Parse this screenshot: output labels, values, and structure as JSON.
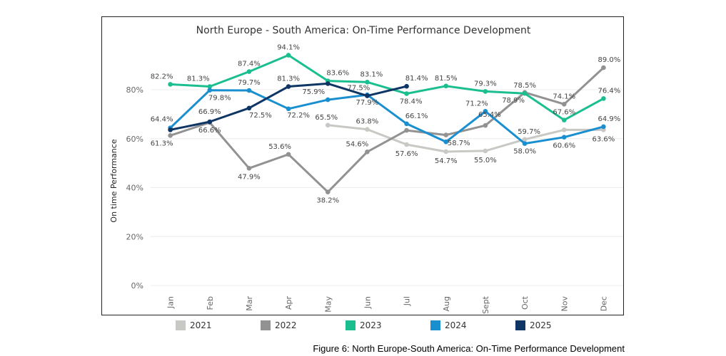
{
  "chart_data": {
    "type": "line",
    "title": "North Europe - South America: On-Time Performance Development",
    "ylabel": "On time Performance",
    "xlabel": "",
    "ylim": [
      0,
      100
    ],
    "yticks": [
      0,
      20,
      40,
      60,
      80
    ],
    "ytick_labels": [
      "0%",
      "20%",
      "40%",
      "60%",
      "80%"
    ],
    "categories": [
      "Jan",
      "Feb",
      "Mar",
      "Apr",
      "May",
      "Jun",
      "Jul",
      "Aug",
      "Sept",
      "Oct",
      "Nov",
      "Dec"
    ],
    "legend_position": "bottom",
    "series": [
      {
        "name": "2021",
        "color": "#c8c8c4",
        "values": [
          null,
          null,
          null,
          null,
          65.5,
          63.8,
          57.6,
          54.7,
          55.0,
          59.7,
          63.6,
          63.6
        ],
        "labels": [
          null,
          null,
          null,
          null,
          "65.5%",
          "63.8%",
          "57.6%",
          "54.7%",
          "55.0%",
          "59.7%",
          null,
          "63.6%"
        ]
      },
      {
        "name": "2022",
        "color": "#929292",
        "values": [
          61.3,
          66.6,
          47.9,
          53.6,
          38.2,
          54.6,
          63.4,
          61.5,
          65.4,
          78.9,
          74.1,
          89.0
        ],
        "labels": [
          "61.3%",
          "66.6%",
          "47.9%",
          "53.6%",
          "38.2%",
          "54.6%",
          null,
          null,
          "65.4%",
          "78.9%",
          "74.1%",
          "89.0%"
        ]
      },
      {
        "name": "2023",
        "color": "#1bbf8f",
        "values": [
          82.2,
          81.3,
          87.4,
          94.1,
          83.6,
          83.1,
          78.4,
          81.5,
          79.3,
          78.5,
          67.6,
          76.4
        ],
        "labels": [
          "82.2%",
          "81.3%",
          "87.4%",
          "94.1%",
          "83.6%",
          "83.1%",
          "78.4%",
          "81.5%",
          "79.3%",
          "78.5%",
          "67.6%",
          "76.4%"
        ]
      },
      {
        "name": "2024",
        "color": "#1a8fd0",
        "values": [
          64.4,
          79.8,
          79.7,
          72.2,
          75.9,
          77.9,
          66.1,
          58.7,
          71.2,
          58.0,
          60.6,
          64.9
        ],
        "labels": [
          "64.4%",
          "79.8%",
          "79.7%",
          "72.2%",
          "75.9%",
          "77.9%",
          "66.1%",
          "58.7%",
          "71.2%",
          "58.0%",
          "60.6%",
          "64.9%"
        ]
      },
      {
        "name": "2025",
        "color": "#0f3564",
        "values": [
          63.6,
          66.9,
          72.5,
          81.3,
          82.5,
          77.5,
          81.4,
          null,
          null,
          null,
          null,
          null
        ],
        "labels": [
          null,
          "66.9%",
          "72.5%",
          "81.3%",
          null,
          "77.5%",
          "81.4%",
          null,
          null,
          null,
          null,
          null
        ]
      }
    ]
  },
  "caption": "Figure 6: North Europe-South America: On-Time Performance Development"
}
